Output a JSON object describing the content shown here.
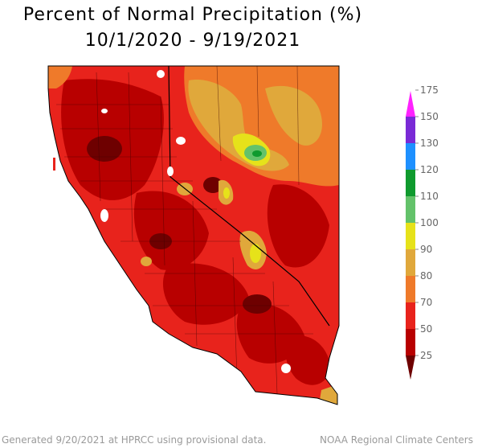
{
  "title_line1": "Percent of Normal Precipitation (%)",
  "title_line2": "10/1/2020 - 9/19/2021",
  "legend": {
    "labels": [
      "25",
      "50",
      "70",
      "80",
      "90",
      "100",
      "110",
      "120",
      "130",
      "150",
      "175"
    ],
    "colors": [
      "#6e0000",
      "#b80000",
      "#e8231c",
      "#ef7a2a",
      "#e0a83b",
      "#e6e21a",
      "#63c26a",
      "#0f9a2e",
      "#1e90ff",
      "#7a2ad6",
      "#ff22ff"
    ]
  },
  "footer": {
    "left": "Generated 9/20/2021 at HPRCC using provisional data.",
    "right": "NOAA Regional Climate Centers"
  }
}
